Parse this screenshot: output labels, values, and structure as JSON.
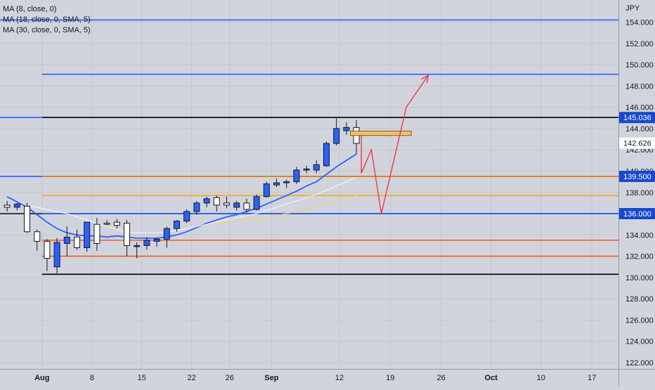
{
  "legend": {
    "ma1": "MA (8, close, 0)",
    "ma2": "MA (18, close, 0, SMA, 5)",
    "ma3": "MA (30, close, 0, SMA, 5)"
  },
  "currency": "JPY",
  "chart_data": {
    "type": "candlestick",
    "y_range": [
      121,
      156.4
    ],
    "y_ticks": [
      "154.000",
      "152.000",
      "150.000",
      "148.000",
      "146.000",
      "144.000",
      "142.000",
      "140.000",
      "138.000",
      "136.000",
      "134.000",
      "132.000",
      "130.000",
      "128.000",
      "126.000",
      "124.000",
      "122.000"
    ],
    "x_ticks": [
      {
        "label": "Aug",
        "bold": true,
        "bar": 3.5
      },
      {
        "label": "8",
        "bold": false,
        "bar": 8.5
      },
      {
        "label": "15",
        "bold": false,
        "bar": 13.5
      },
      {
        "label": "22",
        "bold": false,
        "bar": 18.5
      },
      {
        "label": "26",
        "bold": false,
        "bar": 22.3
      },
      {
        "label": "Sep",
        "bold": true,
        "bar": 26.5
      },
      {
        "label": "12",
        "bold": false,
        "bar": 33.3
      },
      {
        "label": "19",
        "bold": false,
        "bar": 38.4
      },
      {
        "label": "26",
        "bold": false,
        "bar": 43.5
      },
      {
        "label": "Oct",
        "bold": true,
        "bar": 48.5
      },
      {
        "label": "10",
        "bold": false,
        "bar": 53.5
      },
      {
        "label": "17",
        "bold": false,
        "bar": 58.6
      }
    ],
    "candles": [
      {
        "o": 136.8,
        "h": 137.2,
        "l": 136.2,
        "c": 136.6
      },
      {
        "o": 136.6,
        "h": 137.0,
        "l": 136.3,
        "c": 136.9
      },
      {
        "o": 136.7,
        "h": 137.0,
        "l": 134.2,
        "c": 134.3
      },
      {
        "o": 134.3,
        "h": 134.5,
        "l": 132.5,
        "c": 133.4
      },
      {
        "o": 133.4,
        "h": 133.6,
        "l": 130.6,
        "c": 131.8
      },
      {
        "o": 131.0,
        "h": 133.7,
        "l": 130.4,
        "c": 133.3
      },
      {
        "o": 133.2,
        "h": 134.8,
        "l": 132.0,
        "c": 133.8
      },
      {
        "o": 133.8,
        "h": 134.5,
        "l": 132.6,
        "c": 132.8
      },
      {
        "o": 132.8,
        "h": 135.2,
        "l": 132.4,
        "c": 135.2
      },
      {
        "o": 135.0,
        "h": 135.6,
        "l": 132.5,
        "c": 133.2
      },
      {
        "o": 135.1,
        "h": 135.4,
        "l": 134.9,
        "c": 135.0
      },
      {
        "o": 135.2,
        "h": 135.5,
        "l": 134.6,
        "c": 134.9
      },
      {
        "o": 135.1,
        "h": 135.4,
        "l": 132.0,
        "c": 133.0
      },
      {
        "o": 133.0,
        "h": 133.3,
        "l": 131.8,
        "c": 133.0
      },
      {
        "o": 133.0,
        "h": 133.8,
        "l": 132.6,
        "c": 133.5
      },
      {
        "o": 133.4,
        "h": 133.7,
        "l": 132.9,
        "c": 133.6
      },
      {
        "o": 133.6,
        "h": 134.8,
        "l": 132.8,
        "c": 134.6
      },
      {
        "o": 134.6,
        "h": 135.4,
        "l": 134.3,
        "c": 135.3
      },
      {
        "o": 135.3,
        "h": 136.4,
        "l": 135.1,
        "c": 136.2
      },
      {
        "o": 136.2,
        "h": 137.2,
        "l": 135.9,
        "c": 137.0
      },
      {
        "o": 137.0,
        "h": 137.6,
        "l": 136.6,
        "c": 137.4
      },
      {
        "o": 137.5,
        "h": 137.7,
        "l": 136.2,
        "c": 136.8
      },
      {
        "o": 137.0,
        "h": 137.6,
        "l": 136.5,
        "c": 136.8
      },
      {
        "o": 136.6,
        "h": 137.2,
        "l": 136.3,
        "c": 137.0
      },
      {
        "o": 137.0,
        "h": 137.4,
        "l": 136.1,
        "c": 136.4
      },
      {
        "o": 136.4,
        "h": 137.8,
        "l": 136.3,
        "c": 137.6
      },
      {
        "o": 137.6,
        "h": 139.0,
        "l": 137.5,
        "c": 138.8
      },
      {
        "o": 138.7,
        "h": 139.3,
        "l": 138.5,
        "c": 138.9
      },
      {
        "o": 138.9,
        "h": 139.2,
        "l": 138.4,
        "c": 139.0
      },
      {
        "o": 139.0,
        "h": 140.4,
        "l": 138.8,
        "c": 140.1
      },
      {
        "o": 140.2,
        "h": 140.5,
        "l": 139.8,
        "c": 140.2
      },
      {
        "o": 140.1,
        "h": 141.0,
        "l": 139.8,
        "c": 140.6
      },
      {
        "o": 140.5,
        "h": 142.8,
        "l": 140.4,
        "c": 142.6
      },
      {
        "o": 142.6,
        "h": 145.0,
        "l": 142.4,
        "c": 144.0
      },
      {
        "o": 143.8,
        "h": 144.6,
        "l": 143.4,
        "c": 144.1
      },
      {
        "o": 144.1,
        "h": 144.8,
        "l": 141.6,
        "c": 142.6
      }
    ],
    "ma_series": [
      {
        "color": "#2962ff",
        "values": [
          137.6,
          137.1,
          136.6,
          135.9,
          135.2,
          134.6,
          134.2,
          134.0,
          133.9,
          133.9,
          133.8,
          133.9,
          133.8,
          133.7,
          133.7,
          133.7,
          133.8,
          134.0,
          134.3,
          134.7,
          135.1,
          135.4,
          135.7,
          135.9,
          136.2,
          136.5,
          136.9,
          137.3,
          137.7,
          138.1,
          138.6,
          139.0,
          139.7,
          140.4,
          141.0,
          141.6
        ]
      },
      {
        "color": "#f0f2f6",
        "values": [
          null,
          null,
          136.7,
          136.6,
          136.4,
          136.2,
          136.0,
          135.7,
          135.4,
          135.1,
          134.8,
          134.5,
          134.3,
          134.2,
          134.2,
          134.2,
          134.3,
          134.4,
          134.6,
          134.8,
          135.0,
          135.2,
          135.4,
          135.6,
          135.8,
          136.0,
          136.3,
          136.6,
          136.9,
          137.2,
          137.5,
          137.8,
          138.2,
          138.6,
          139.0,
          139.4
        ]
      },
      {
        "color": "#e8d86b",
        "values": [
          null,
          null,
          null,
          null,
          null,
          null,
          null,
          null,
          null,
          null,
          null,
          null,
          null,
          null,
          null,
          null,
          null,
          null,
          null,
          null,
          null,
          135.1,
          135.2,
          135.3,
          135.4,
          135.5,
          135.6,
          135.8,
          136.0,
          136.2,
          136.4,
          136.6,
          136.9,
          137.2,
          137.4,
          137.7
        ]
      }
    ],
    "price_tags": [
      {
        "label": "145.036",
        "value": 145.036,
        "bg": "#1848cc",
        "fg": "#ffffff"
      },
      {
        "label": "142.626",
        "value": 142.626,
        "bg": "#ffffff",
        "fg": "#131722"
      },
      {
        "label": "139.500",
        "value": 139.5,
        "bg": "#1848cc",
        "fg": "#ffffff"
      },
      {
        "label": "136.000",
        "value": 136.0,
        "bg": "#1848cc",
        "fg": "#ffffff"
      }
    ],
    "h_lines": [
      {
        "value": 154.2,
        "color": "#2962ff",
        "from": "left"
      },
      {
        "value": 149.1,
        "color": "#2962ff",
        "from": "aug"
      },
      {
        "value": 145.036,
        "color": "#000000",
        "from": "aug"
      },
      {
        "value": 145.036,
        "color": "#2962ff",
        "from": "left",
        "to": "aug"
      },
      {
        "value": 139.5,
        "color": "#2962ff",
        "from": "left"
      },
      {
        "value": 139.5,
        "color": "#f57c00",
        "from": "aug"
      },
      {
        "value": 137.7,
        "color": "#f5a623",
        "from": "aug"
      },
      {
        "value": 136.0,
        "color": "#1a1a1a",
        "from": "left"
      },
      {
        "value": 136.0,
        "color": "#2962ff",
        "from": "aug"
      },
      {
        "value": 133.5,
        "color": "#ef5a1f",
        "from": "aug"
      },
      {
        "value": 132.0,
        "color": "#ef5a1f",
        "from": "aug"
      },
      {
        "value": 130.3,
        "color": "#000000",
        "from": "aug"
      }
    ],
    "zone": {
      "bar_from": 34.4,
      "bar_to": 40.5,
      "top": 143.75,
      "bottom": 143.35,
      "color": "#f5c26b",
      "border": "#7a5a10"
    },
    "projection": {
      "color": "#f23645",
      "points": [
        [
          35.5,
          143.4
        ],
        [
          35.5,
          139.8
        ],
        [
          36.5,
          142.0
        ],
        [
          37.5,
          136.0
        ],
        [
          40.0,
          146.0
        ],
        [
          42.2,
          149.0
        ]
      ]
    },
    "colors": {
      "up": "#2962ff",
      "down": "#ffffff",
      "wick": "#131722",
      "grid": "#c2c6cf"
    }
  }
}
